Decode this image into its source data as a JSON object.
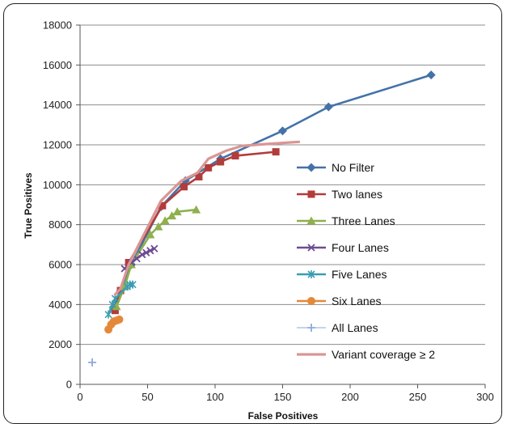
{
  "chart_data": {
    "type": "line",
    "title": "",
    "xlabel": "False Positives",
    "ylabel": "True Positives",
    "xlim": [
      0,
      300
    ],
    "ylim": [
      0,
      18000
    ],
    "xticks": [
      "0",
      "50",
      "100",
      "150",
      "200",
      "250",
      "300"
    ],
    "yticks": [
      "0",
      "2000",
      "4000",
      "6000",
      "8000",
      "10000",
      "12000",
      "14000",
      "16000",
      "18000"
    ],
    "grid": "horizontal",
    "legend_position": "right",
    "series": [
      {
        "name": "No Filter",
        "color": "#4472a8",
        "marker": "diamond",
        "line": true,
        "points": [
          [
            25,
            3800
          ],
          [
            30,
            4700
          ],
          [
            38,
            6000
          ],
          [
            60,
            8900
          ],
          [
            78,
            10200
          ],
          [
            104,
            11300
          ],
          [
            150,
            12700
          ],
          [
            184,
            13900
          ],
          [
            260,
            15500
          ]
        ]
      },
      {
        "name": "Two lanes",
        "color": "#b23c3a",
        "marker": "square",
        "line": true,
        "points": [
          [
            26,
            3700
          ],
          [
            30,
            4700
          ],
          [
            36,
            6100
          ],
          [
            61,
            8950
          ],
          [
            77,
            9900
          ],
          [
            88,
            10400
          ],
          [
            95,
            10850
          ],
          [
            104,
            11150
          ],
          [
            115,
            11450
          ],
          [
            145,
            11650
          ]
        ]
      },
      {
        "name": "Three Lanes",
        "color": "#8fb04d",
        "marker": "triangle",
        "line": true,
        "points": [
          [
            27,
            3900
          ],
          [
            33,
            4900
          ],
          [
            38,
            6000
          ],
          [
            52,
            7500
          ],
          [
            58,
            7900
          ],
          [
            63,
            8200
          ],
          [
            68,
            8450
          ],
          [
            72,
            8650
          ],
          [
            86,
            8750
          ]
        ]
      },
      {
        "name": "Four Lanes",
        "color": "#6e4b94",
        "marker": "x",
        "line": true,
        "points": [
          [
            33,
            5800
          ],
          [
            38,
            6100
          ],
          [
            42,
            6300
          ],
          [
            46,
            6500
          ],
          [
            49,
            6600
          ],
          [
            52,
            6700
          ],
          [
            55,
            6800
          ]
        ]
      },
      {
        "name": "Five Lanes",
        "color": "#3b9db1",
        "marker": "star",
        "line": true,
        "points": [
          [
            21,
            3500
          ],
          [
            24,
            4000
          ],
          [
            26,
            4300
          ],
          [
            35,
            4900
          ],
          [
            37,
            5000
          ],
          [
            39,
            5000
          ]
        ]
      },
      {
        "name": "Six Lanes",
        "color": "#e4893a",
        "marker": "circle",
        "line": true,
        "points": [
          [
            21,
            2750
          ],
          [
            23,
            3000
          ],
          [
            25,
            3150
          ],
          [
            27,
            3200
          ],
          [
            29,
            3250
          ]
        ]
      },
      {
        "name": "All Lanes",
        "color": "#8ea9d8",
        "marker": "plus",
        "line": false,
        "points": [
          [
            9,
            1100
          ]
        ]
      },
      {
        "name": "Variant coverage ≥ 2",
        "color": "#d99694",
        "marker": "none",
        "line": true,
        "points": [
          [
            26,
            4500
          ],
          [
            30,
            4800
          ],
          [
            36,
            6000
          ],
          [
            45,
            7200
          ],
          [
            60,
            9200
          ],
          [
            75,
            10200
          ],
          [
            87,
            10600
          ],
          [
            95,
            11300
          ],
          [
            108,
            11700
          ],
          [
            120,
            11950
          ],
          [
            140,
            12050
          ],
          [
            162,
            12150
          ]
        ]
      }
    ]
  }
}
